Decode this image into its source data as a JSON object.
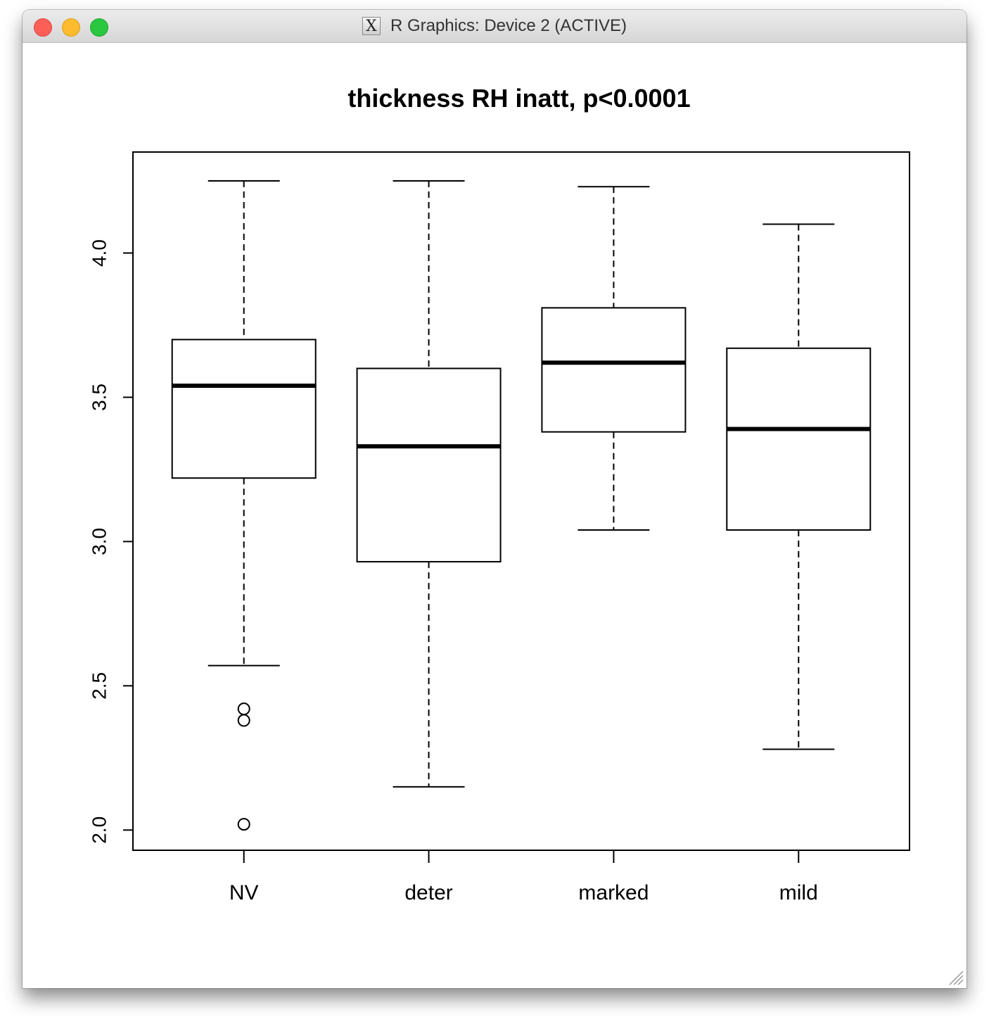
{
  "window": {
    "title": "R Graphics: Device 2 (ACTIVE)",
    "icon": "x11-icon"
  },
  "chart_data": {
    "type": "boxplot",
    "title": "thickness RH inatt, p<0.0001",
    "xlabel": "",
    "ylabel": "",
    "categories": [
      "NV",
      "deter",
      "marked",
      "mild"
    ],
    "ylim": [
      1.93,
      4.35
    ],
    "y_ticks": [
      {
        "value": 2.0,
        "label": "2.0"
      },
      {
        "value": 2.5,
        "label": "2.5"
      },
      {
        "value": 3.0,
        "label": "3.0"
      },
      {
        "value": 3.5,
        "label": "3.5"
      },
      {
        "value": 4.0,
        "label": "4.0"
      }
    ],
    "boxes": [
      {
        "category": "NV",
        "whisker_low": 2.57,
        "q1": 3.22,
        "median": 3.54,
        "q3": 3.7,
        "whisker_high": 4.25,
        "outliers": [
          2.42,
          2.38,
          2.02
        ]
      },
      {
        "category": "deter",
        "whisker_low": 2.15,
        "q1": 2.93,
        "median": 3.33,
        "q3": 3.6,
        "whisker_high": 4.25,
        "outliers": []
      },
      {
        "category": "marked",
        "whisker_low": 3.04,
        "q1": 3.38,
        "median": 3.62,
        "q3": 3.81,
        "whisker_high": 4.23,
        "outliers": []
      },
      {
        "category": "mild",
        "whisker_low": 2.28,
        "q1": 3.04,
        "median": 3.39,
        "q3": 3.67,
        "whisker_high": 4.1,
        "outliers": []
      }
    ],
    "grid": false,
    "legend": "none",
    "colors": {
      "box_fill": "#ffffff",
      "stroke": "#000000"
    }
  }
}
